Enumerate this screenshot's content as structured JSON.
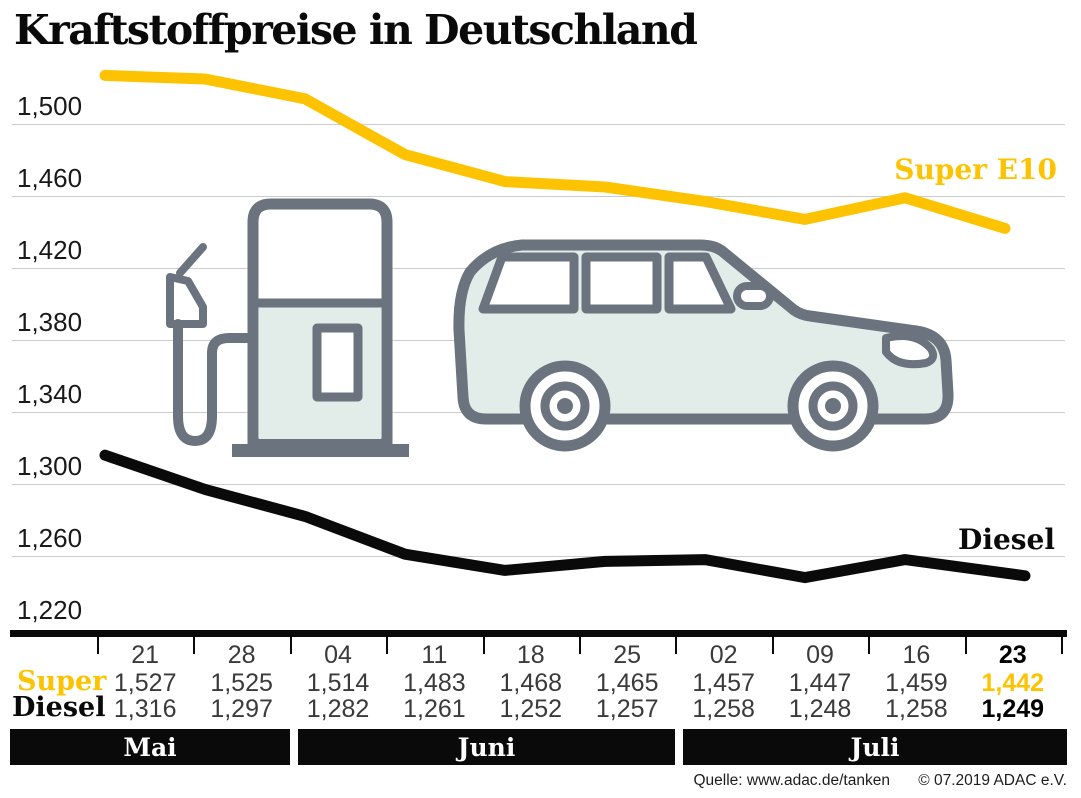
{
  "title": "Kraftstoffpreise in Deutschland",
  "source": {
    "label": "Quelle: www.adac.de/tanken",
    "copyright": "© 07.2019  ADAC e.V."
  },
  "colors": {
    "super": "#fdc300",
    "diesel": "#0a0a0a",
    "grid": "#c9cccf",
    "icon_stroke": "#6b737e",
    "icon_fill": "#e2ece9"
  },
  "chart_data": {
    "type": "line",
    "title": "Kraftstoffpreise in Deutschland",
    "x_dates": [
      "21",
      "28",
      "04",
      "11",
      "18",
      "25",
      "02",
      "09",
      "16",
      "23"
    ],
    "months": [
      {
        "label": "Mai",
        "columns": 2
      },
      {
        "label": "Juni",
        "columns": 4
      },
      {
        "label": "Juli",
        "columns": 4
      }
    ],
    "yticks": [
      "1,500",
      "1,460",
      "1,420",
      "1,380",
      "1,340",
      "1,300",
      "1,260",
      "1,220"
    ],
    "ylim": [
      1.21,
      1.54
    ],
    "grid": true,
    "legend_position": "inline-right",
    "series": [
      {
        "name": "Super E10",
        "table_label": "Super",
        "color": "#fdc300",
        "values": [
          1.527,
          1.525,
          1.514,
          1.483,
          1.468,
          1.465,
          1.457,
          1.447,
          1.459,
          1.442
        ],
        "display": [
          "1,527",
          "1,525",
          "1,514",
          "1,483",
          "1,468",
          "1,465",
          "1,457",
          "1,447",
          "1,459",
          "1,442"
        ]
      },
      {
        "name": "Diesel",
        "table_label": "Diesel",
        "color": "#0a0a0a",
        "values": [
          1.316,
          1.297,
          1.282,
          1.261,
          1.252,
          1.257,
          1.258,
          1.248,
          1.258,
          1.249
        ],
        "display": [
          "1,316",
          "1,297",
          "1,282",
          "1,261",
          "1,252",
          "1,257",
          "1,258",
          "1,248",
          "1,258",
          "1,249"
        ]
      }
    ]
  }
}
